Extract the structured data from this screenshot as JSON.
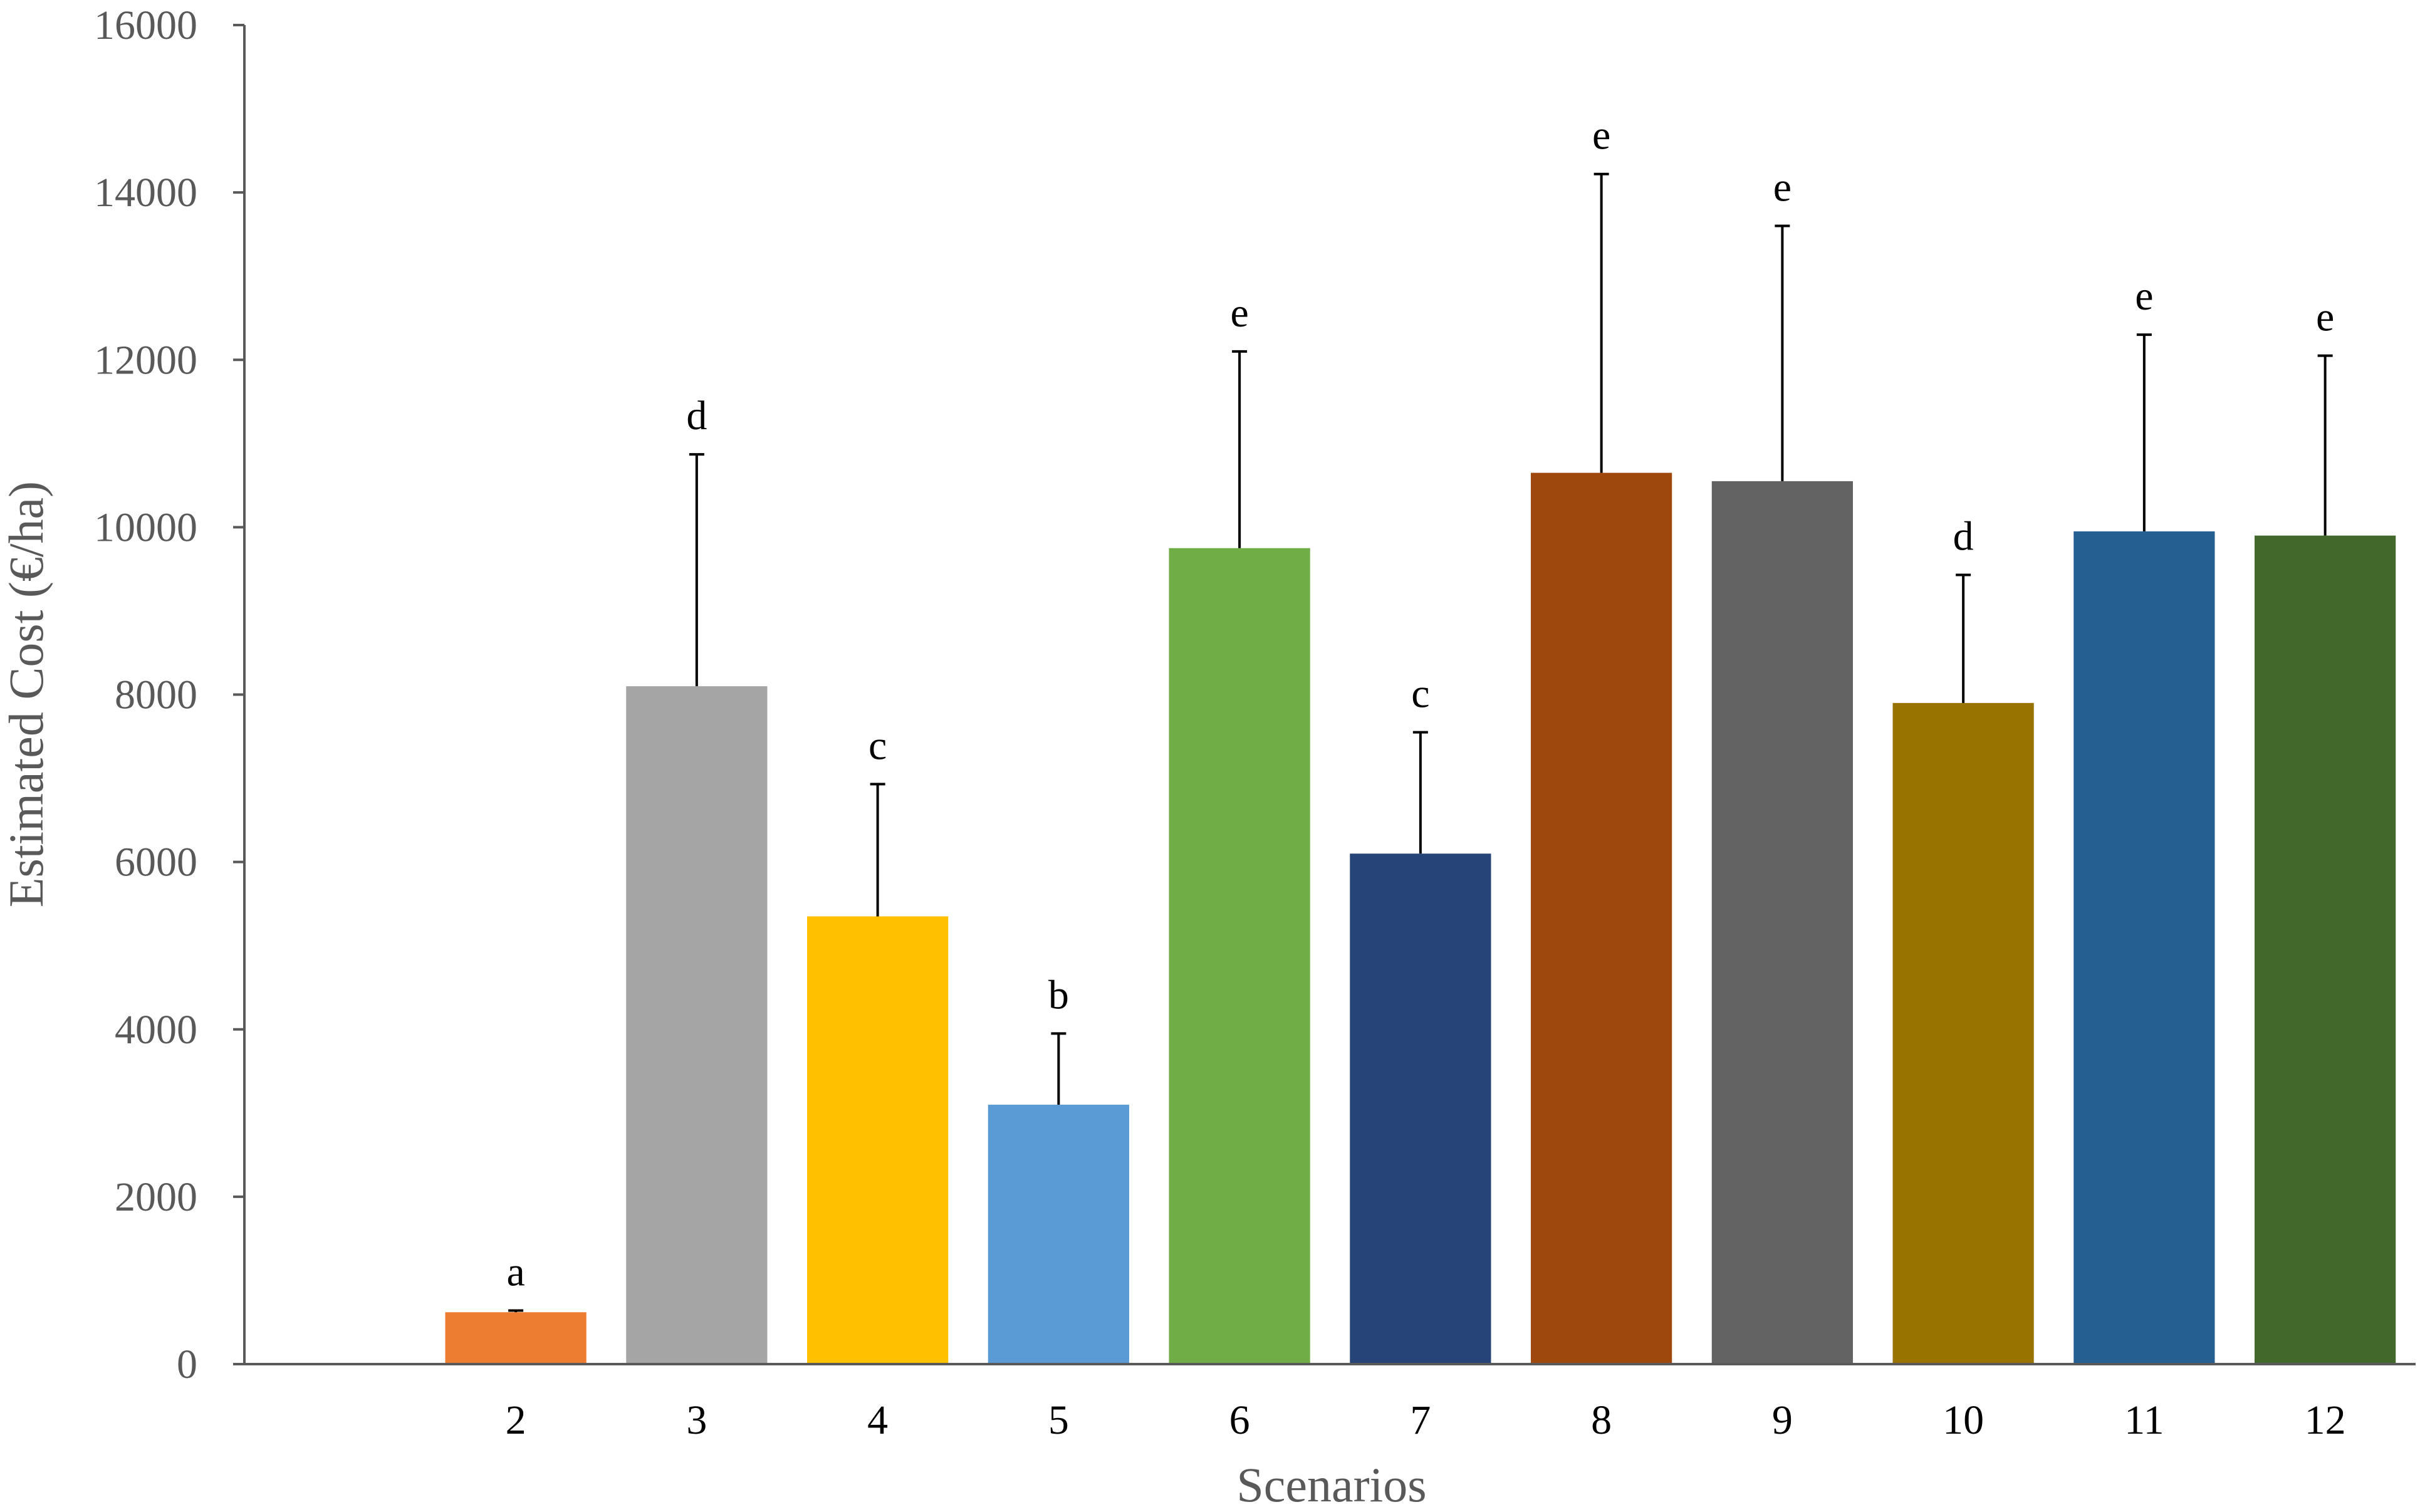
{
  "chart_data": {
    "type": "bar",
    "title": "",
    "xlabel": "Scenarios",
    "ylabel": "Estimated Cost (€/ha)",
    "ylim": [
      0,
      16000
    ],
    "yticks": [
      0,
      2000,
      4000,
      6000,
      8000,
      10000,
      12000,
      14000,
      16000
    ],
    "ytick_labels": [
      "0",
      "2000",
      "4000",
      "6000",
      "8000",
      "10000",
      "12000",
      "14000",
      "16000"
    ],
    "x_slots": [
      "",
      "2",
      "3",
      "4",
      "5",
      "6",
      "7",
      "8",
      "9",
      "10",
      "11",
      "12"
    ],
    "categories": [
      "2",
      "3",
      "4",
      "5",
      "6",
      "7",
      "8",
      "9",
      "10",
      "11",
      "12"
    ],
    "values": [
      620,
      8100,
      5350,
      3100,
      9750,
      6100,
      10650,
      10550,
      7900,
      9950,
      9900
    ],
    "error_upper": [
      640,
      10870,
      6930,
      3950,
      12100,
      7550,
      14220,
      13600,
      9430,
      12300,
      12050
    ],
    "significance_letters": [
      "a",
      "d",
      "c",
      "b",
      "e",
      "c",
      "e",
      "e",
      "d",
      "e",
      "e"
    ],
    "bar_colors": [
      "#ED7D31",
      "#A5A5A5",
      "#FFC000",
      "#5B9BD5",
      "#70AD47",
      "#264478",
      "#9E480E",
      "#636363",
      "#997300",
      "#255E91",
      "#43682B"
    ],
    "grid": false,
    "legend": "none"
  }
}
